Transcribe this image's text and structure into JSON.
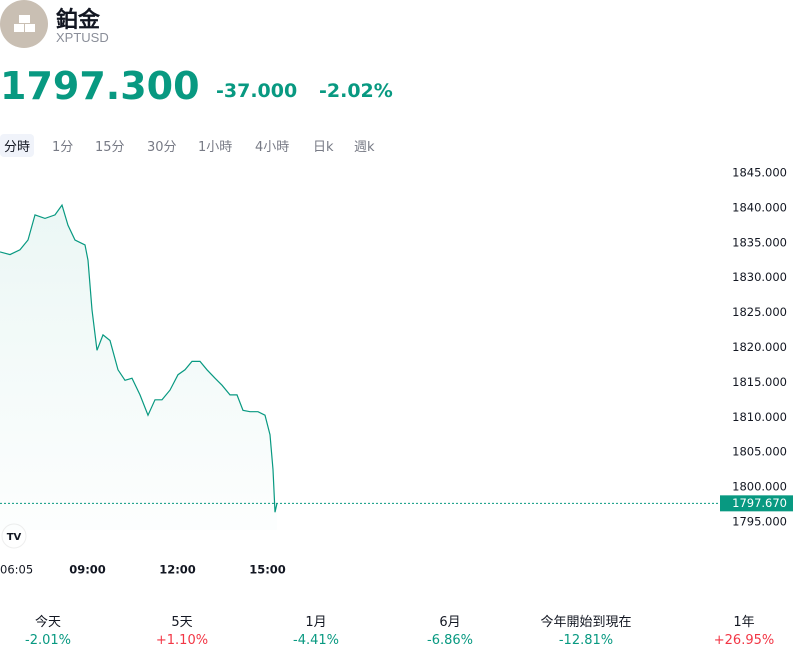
{
  "header": {
    "title": "鉑金",
    "symbol": "XPTUSD",
    "price": "1797.300",
    "change": "-37.000",
    "change_percent": "-2.02%"
  },
  "tabs": [
    "分時",
    "1分",
    "15分",
    "30分",
    "1小時",
    "4小時",
    "日k",
    "週k"
  ],
  "chart_data": {
    "type": "line",
    "color": "#089981",
    "x": [
      "06:05",
      "06:25",
      "06:45",
      "07:01",
      "07:15",
      "07:35",
      "07:55",
      "08:09",
      "08:21",
      "08:35",
      "08:55",
      "09:01",
      "09:09",
      "09:19",
      "09:31",
      "09:45",
      "10:01",
      "10:15",
      "10:29",
      "10:45",
      "11:01",
      "11:15",
      "11:29",
      "11:45",
      "12:01",
      "12:15",
      "12:29",
      "12:45",
      "12:59",
      "13:15",
      "13:29",
      "13:45",
      "13:59",
      "14:11",
      "14:25",
      "14:41",
      "14:55",
      "15:05",
      "15:11",
      "15:15",
      "15:19"
    ],
    "values": [
      1833.7,
      1833.3,
      1834,
      1835.4,
      1839,
      1838.5,
      1839,
      1840.4,
      1837.5,
      1835.4,
      1834.7,
      1832.5,
      1825.4,
      1819.6,
      1821.8,
      1821,
      1816.8,
      1815.3,
      1815.6,
      1813.2,
      1810.3,
      1812.5,
      1812.5,
      1813.9,
      1816.1,
      1816.8,
      1818,
      1818,
      1816.8,
      1815.6,
      1814.6,
      1813.2,
      1813.2,
      1811,
      1810.8,
      1810.8,
      1810.3,
      1807.5,
      1802.5,
      1796.4,
      1797.67
    ],
    "xticks": [
      "06:05",
      "09:00",
      "12:00",
      "15:00"
    ],
    "ylim": [
      1793.85,
      1846.86
    ],
    "yticks": [
      {
        "value": 1845,
        "label": "1845.000"
      },
      {
        "value": 1840,
        "label": "1840.000"
      },
      {
        "value": 1835,
        "label": "1835.000"
      },
      {
        "value": 1830,
        "label": "1830.000"
      },
      {
        "value": 1825,
        "label": "1825.000"
      },
      {
        "value": 1820,
        "label": "1820.000"
      },
      {
        "value": 1815,
        "label": "1815.000"
      },
      {
        "value": 1810,
        "label": "1810.000"
      },
      {
        "value": 1805,
        "label": "1805.000"
      },
      {
        "value": 1800,
        "label": "1800.000"
      },
      {
        "value": 1795,
        "label": "1795.000"
      }
    ],
    "last_value": 1797.67,
    "last_value_label": "1797.670"
  },
  "performance": [
    {
      "label": "今天",
      "value": "-2.01%",
      "color": "#089981"
    },
    {
      "label": "5天",
      "value": "+1.10%",
      "color": "#f23645"
    },
    {
      "label": "1月",
      "value": "-4.41%",
      "color": "#089981"
    },
    {
      "label": "6月",
      "value": "-6.86%",
      "color": "#089981"
    },
    {
      "label": "今年開始到現在",
      "value": "-12.81%",
      "color": "#089981"
    },
    {
      "label": "1年",
      "value": "+26.95%",
      "color": "#f23645"
    }
  ]
}
